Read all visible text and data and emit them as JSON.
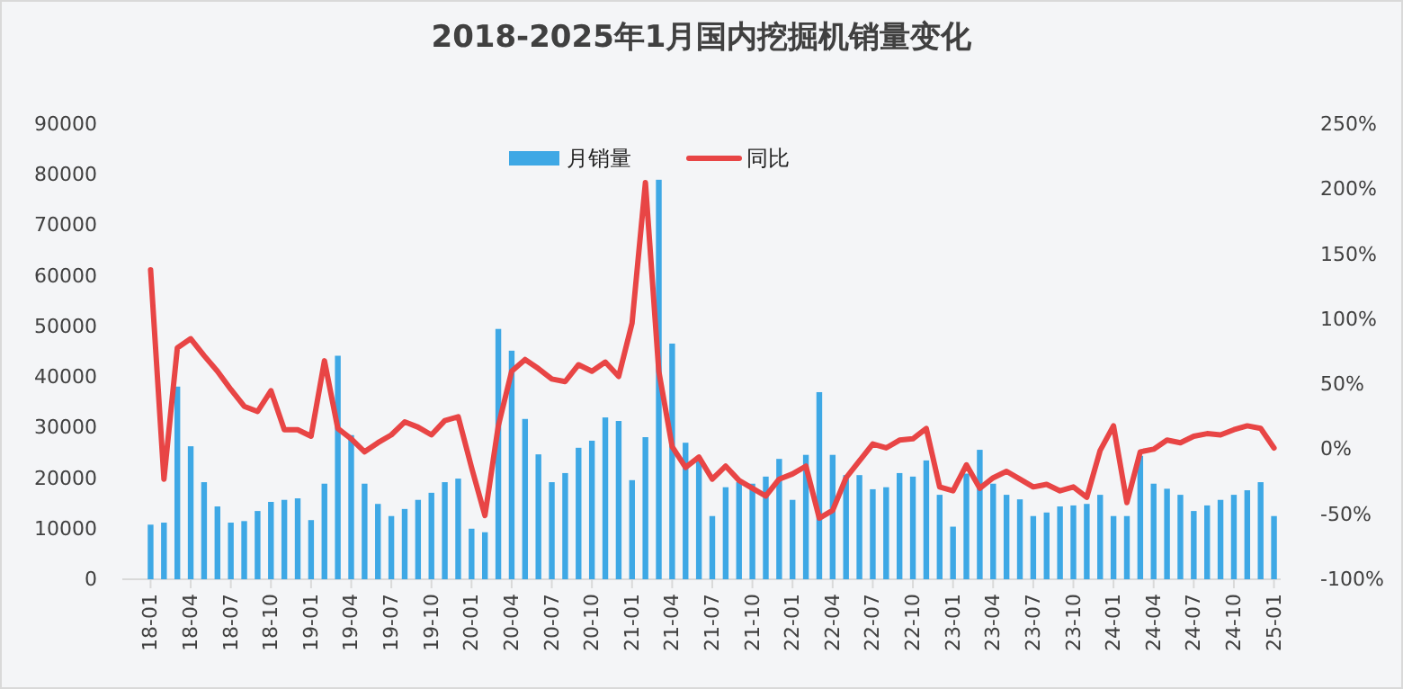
{
  "chart_data": {
    "type": "bar",
    "title": "2018-2025年1月国内挖掘机销量变化",
    "categories": [
      "18-01",
      null,
      null,
      "18-04",
      null,
      null,
      "18-07",
      null,
      null,
      "18-10",
      null,
      null,
      "19-01",
      null,
      null,
      "19-04",
      null,
      null,
      "19-07",
      null,
      null,
      "19-10",
      null,
      null,
      "20-01",
      null,
      null,
      "20-04",
      null,
      null,
      "20-07",
      null,
      null,
      "20-10",
      null,
      null,
      "21-01",
      null,
      null,
      "21-04",
      null,
      null,
      "21-07",
      null,
      null,
      "21-10",
      null,
      null,
      "22-01",
      null,
      null,
      "22-04",
      null,
      null,
      "22-07",
      null,
      null,
      "22-10",
      null,
      null,
      "23-01",
      null,
      null,
      "23-04",
      null,
      null,
      "23-07",
      null,
      null,
      "23-10",
      null,
      null,
      "24-01",
      null,
      null,
      "24-04",
      null,
      null,
      "24-07",
      null,
      null,
      "24-10",
      null,
      null,
      "25-01"
    ],
    "series": [
      {
        "name": "月销量",
        "color": "#3ea8e5",
        "values": [
          10800,
          11200,
          38100,
          26300,
          19200,
          14400,
          11200,
          11500,
          13500,
          15300,
          15700,
          16000,
          11700,
          18900,
          44200,
          28500,
          18900,
          14900,
          12500,
          13900,
          15700,
          17100,
          19200,
          19900,
          10000,
          9300,
          49500,
          45200,
          31700,
          24700,
          19200,
          21000,
          26000,
          27400,
          32000,
          31300,
          19600,
          28100,
          79000,
          46600,
          27000,
          23300,
          12500,
          18200,
          19200,
          18900,
          20300,
          23800,
          15700,
          24600,
          37000,
          24600,
          20600,
          20600,
          17800,
          18200,
          21000,
          20300,
          23500,
          16700,
          10400,
          20900,
          25600,
          18900,
          16700,
          15800,
          12500,
          13200,
          14400,
          14600,
          14900,
          16700,
          12500,
          12500,
          24400,
          18900,
          17900,
          16700,
          13500,
          14600,
          15700,
          16700,
          17600,
          19200,
          12500
        ]
      },
      {
        "name": "同比",
        "type": "line",
        "axis": "y2",
        "color": "#e84545",
        "values": [
          138,
          -23,
          78,
          85,
          72,
          60,
          46,
          33,
          29,
          45,
          15,
          15,
          10,
          68,
          16,
          8,
          -2,
          5,
          11,
          21,
          17,
          11,
          22,
          25,
          -14,
          -51,
          18,
          60,
          69,
          62,
          54,
          52,
          65,
          60,
          67,
          56,
          97,
          205,
          60,
          2,
          -14,
          -6,
          -23,
          -13,
          -24,
          -30,
          -36,
          -23,
          -19,
          -13,
          -53,
          -47,
          -22,
          -9,
          4,
          1,
          7,
          8,
          16,
          -29,
          -32,
          -12,
          -30,
          -22,
          -17,
          -23,
          -29,
          -27,
          -32,
          -29,
          -37,
          -1,
          18,
          -41,
          -2,
          0,
          7,
          5,
          10,
          12,
          11,
          15,
          18,
          16,
          1
        ]
      }
    ],
    "ylim": [
      0,
      90000
    ],
    "yticks": [
      0,
      10000,
      20000,
      30000,
      40000,
      50000,
      60000,
      70000,
      80000,
      90000
    ],
    "y2lim": [
      -100,
      250
    ],
    "y2ticks": [
      {
        "value": -100,
        "label": "-100%"
      },
      {
        "value": -50,
        "label": "-50%"
      },
      {
        "value": 0,
        "label": "0%"
      },
      {
        "value": 50,
        "label": "50%"
      },
      {
        "value": 100,
        "label": "100%"
      },
      {
        "value": 150,
        "label": "150%"
      },
      {
        "value": 200,
        "label": "200%"
      },
      {
        "value": 250,
        "label": "250%"
      }
    ],
    "legend": "top"
  }
}
